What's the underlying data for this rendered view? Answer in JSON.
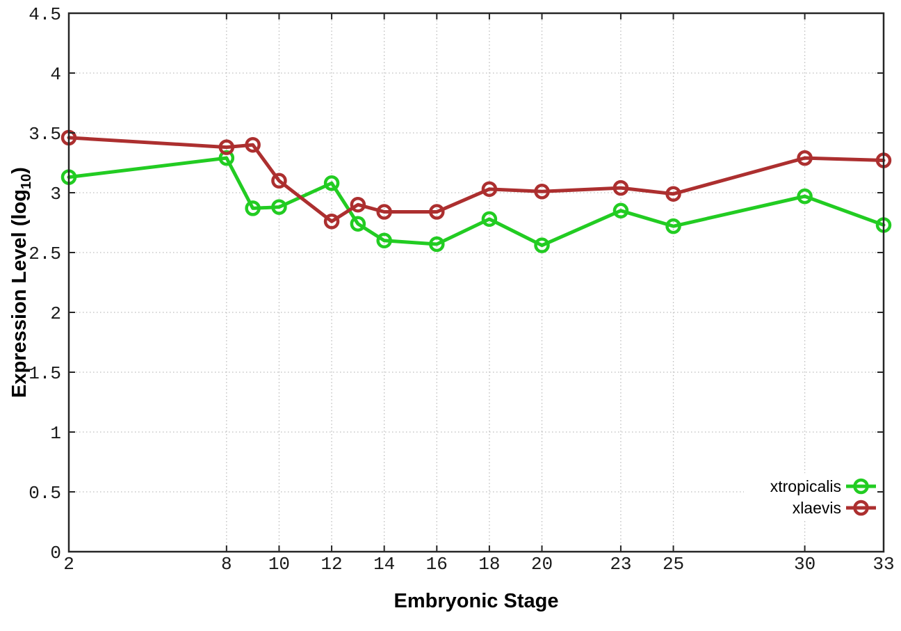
{
  "style": {
    "background": "#ffffff",
    "border_color": "#262626",
    "grid_color": "#bcbcbc",
    "tick_color": "#1a1a1a"
  },
  "chart_data": {
    "type": "line",
    "title": "",
    "xlabel": "Embryonic Stage",
    "ylabel": "Expression Level (log10)",
    "ylabel_parts": {
      "main": "Expression Level (log",
      "sub": "10",
      "close": ")"
    },
    "xlim": [
      2,
      33
    ],
    "ylim": [
      0,
      4.5
    ],
    "grid": true,
    "legend_position": "bottom-right",
    "x": [
      2,
      8,
      9,
      10,
      12,
      13,
      14,
      16,
      18,
      20,
      23,
      25,
      30,
      33
    ],
    "series": [
      {
        "name": "xtropicalis",
        "color": "#22cc22",
        "marker": "open-circle",
        "values": [
          3.13,
          3.29,
          2.87,
          2.88,
          3.08,
          2.74,
          2.6,
          2.57,
          2.78,
          2.56,
          2.85,
          2.72,
          2.97,
          2.73
        ]
      },
      {
        "name": "xlaevis",
        "color": "#ac2f2f",
        "marker": "open-circle",
        "values": [
          3.46,
          3.38,
          3.4,
          3.1,
          2.76,
          2.9,
          2.84,
          2.84,
          3.03,
          3.01,
          3.04,
          2.99,
          3.29,
          3.27
        ]
      }
    ],
    "xticks": {
      "values": [
        2,
        8,
        10,
        12,
        14,
        16,
        18,
        20,
        23,
        25,
        30,
        33
      ],
      "labels": [
        "2",
        "8",
        "10",
        "12",
        "14",
        "16",
        "18",
        "20",
        "23",
        "25",
        "30",
        "33"
      ]
    },
    "yticks": {
      "values": [
        0,
        0.5,
        1,
        1.5,
        2,
        2.5,
        3,
        3.5,
        4,
        4.5
      ],
      "labels": [
        "0",
        "0.5",
        "1",
        "1.5",
        "2",
        "2.5",
        "3",
        "3.5",
        "4",
        "4.5"
      ]
    }
  }
}
